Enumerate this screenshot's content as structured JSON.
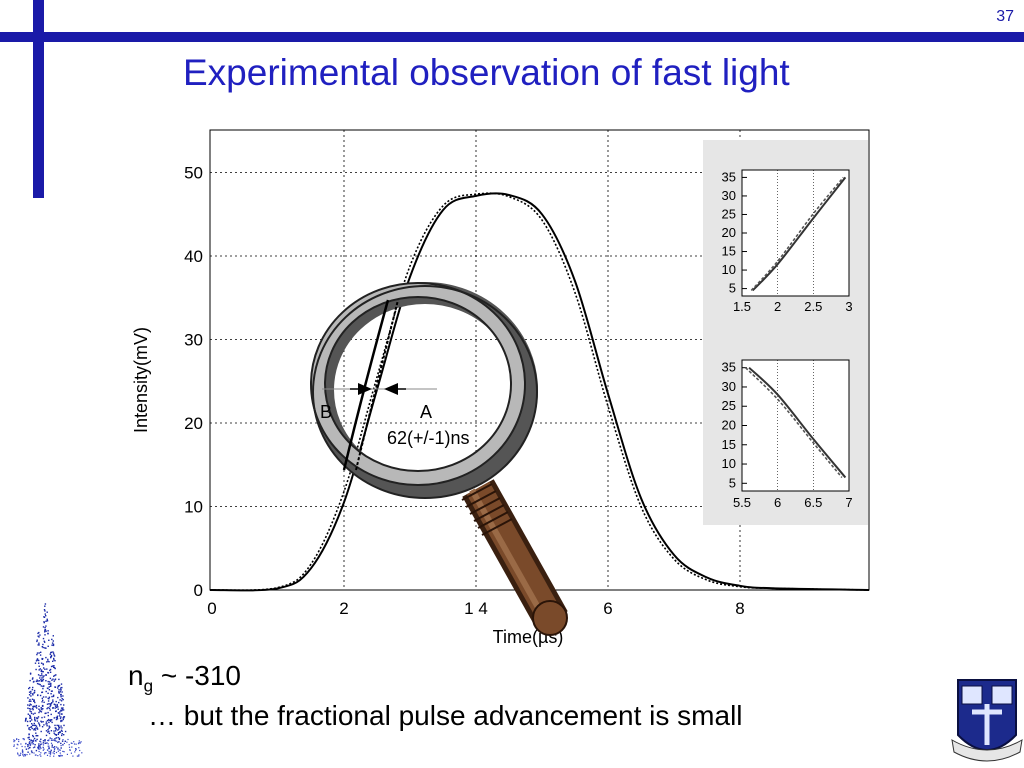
{
  "slide": {
    "number": "37",
    "title": "Experimental observation of fast light",
    "ng_symbol": "n",
    "ng_subscript": "g",
    "ng_value": " ~ -310",
    "note": "… but the fractional pulse advancement is small"
  },
  "chart_data": {
    "type": "line",
    "xlabel": "Time(µs)",
    "ylabel": "Intensity(mV)",
    "xlim": [
      0,
      10
    ],
    "ylim": [
      0,
      55
    ],
    "x_ticks": [
      "0",
      "2",
      "1 4",
      "6",
      "8"
    ],
    "x_tick_values": [
      0,
      2,
      4,
      6,
      8
    ],
    "y_ticks": [
      "0",
      "10",
      "20",
      "30",
      "40",
      "50"
    ],
    "y_tick_values": [
      0,
      10,
      20,
      30,
      40,
      50
    ],
    "grid": true,
    "series": [
      {
        "style": "solid",
        "x": [
          1,
          1.5,
          2,
          2.5,
          3,
          3.5,
          4,
          4.5,
          5,
          5.5,
          6,
          6.5,
          7,
          7.5,
          8,
          8.5
        ],
        "y": [
          0.2,
          2.6,
          10.5,
          24,
          37.5,
          45.5,
          47.2,
          47.3,
          45,
          37,
          23.5,
          11,
          4.2,
          1.5,
          0.5,
          0.2
        ]
      },
      {
        "style": "dotted",
        "x": [
          1,
          1.5,
          2,
          2.5,
          3,
          3.5,
          4,
          4.5,
          5,
          5.5,
          6,
          6.5,
          7,
          7.5,
          8,
          8.5
        ],
        "y": [
          0.3,
          3.1,
          11.8,
          25.5,
          38.8,
          46,
          47.4,
          47.1,
          44.3,
          35.6,
          22,
          10,
          3.7,
          1.2,
          0.4,
          0.2
        ]
      }
    ],
    "annotations": {
      "left": "B",
      "right": "A",
      "delay": "62(+/-1)ns"
    },
    "insets": [
      {
        "x_ticks": [
          "1.5",
          "2",
          "2.5",
          "3"
        ],
        "x_tick_values": [
          1.5,
          2,
          2.5,
          3
        ],
        "y_ticks": [
          "5",
          "10",
          "15",
          "20",
          "25",
          "30",
          "35"
        ],
        "y_tick_values": [
          5,
          10,
          15,
          20,
          25,
          30,
          35
        ],
        "xlim": [
          1.5,
          3
        ],
        "ylim": [
          3,
          37
        ],
        "series": [
          {
            "style": "solid",
            "x": [
              1.65,
              2.0,
              2.5,
              2.95
            ],
            "y": [
              4.5,
              11.6,
              24,
              35
            ]
          },
          {
            "style": "dotted",
            "x": [
              1.63,
              2.0,
              2.5,
              2.92
            ],
            "y": [
              4.5,
              12.4,
              25.2,
              35
            ]
          }
        ]
      },
      {
        "x_ticks": [
          "5.5",
          "6",
          "6.5",
          "7"
        ],
        "x_tick_values": [
          5.5,
          6,
          6.5,
          7
        ],
        "y_ticks": [
          "5",
          "10",
          "15",
          "20",
          "25",
          "30",
          "35"
        ],
        "y_tick_values": [
          5,
          10,
          15,
          20,
          25,
          30,
          35
        ],
        "xlim": [
          5.5,
          7
        ],
        "ylim": [
          3,
          37
        ],
        "series": [
          {
            "style": "solid",
            "x": [
              5.6,
              6.0,
              6.5,
              6.95
            ],
            "y": [
              35,
              28,
              16.5,
              6.5
            ]
          },
          {
            "style": "dotted",
            "x": [
              5.55,
              6.0,
              6.5,
              6.9
            ],
            "y": [
              35,
              26.8,
              15.5,
              6.5
            ]
          }
        ]
      }
    ]
  }
}
